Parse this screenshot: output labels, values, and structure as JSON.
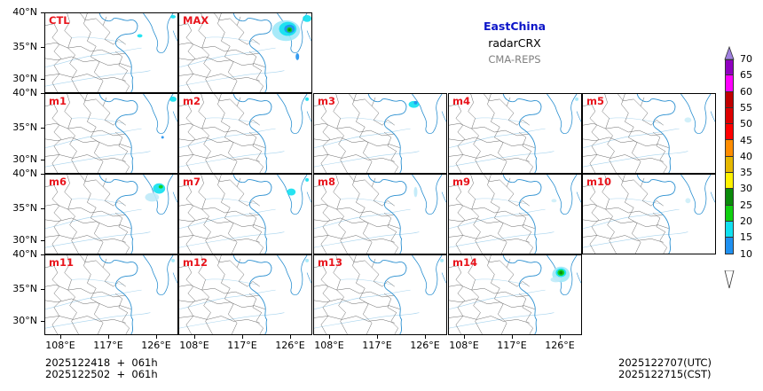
{
  "chart_data": {
    "type": "heatmap",
    "title": "EastChina",
    "subtitle": "radarCRX",
    "source": "CMA-REPS",
    "xlabel": "",
    "ylabel": "",
    "x_ticks": [
      "108°E",
      "117°E",
      "126°E"
    ],
    "y_ticks": [
      "40°N",
      "35°N",
      "30°N"
    ],
    "xlim_deg_E": [
      105,
      132
    ],
    "ylim_deg_N": [
      28,
      40
    ],
    "panels": [
      {
        "label": "CTL",
        "row": 0,
        "col": 0,
        "max_dbz_region": "light scattered echoes near Korea coast (~15 dBZ)"
      },
      {
        "label": "MAX",
        "row": 0,
        "col": 1,
        "max_dbz_region": "Yellow Sea/Korea cluster up to ~30 dBZ near 37.5°N,125°E"
      },
      {
        "label": "m1",
        "row": 1,
        "col": 0,
        "max_dbz_region": "weak echoes NE corner (~15-20 dBZ)"
      },
      {
        "label": "m2",
        "row": 1,
        "col": 1,
        "max_dbz_region": "very weak"
      },
      {
        "label": "m3",
        "row": 1,
        "col": 2,
        "max_dbz_region": "weak echoes near Korea (~15-20 dBZ)"
      },
      {
        "label": "m4",
        "row": 1,
        "col": 3,
        "max_dbz_region": "very weak"
      },
      {
        "label": "m5",
        "row": 1,
        "col": 4,
        "max_dbz_region": "very weak"
      },
      {
        "label": "m6",
        "row": 2,
        "col": 0,
        "max_dbz_region": "cluster ~15-20 dBZ near 37.5°N,123°E"
      },
      {
        "label": "m7",
        "row": 2,
        "col": 1,
        "max_dbz_region": "weak echoes near Korea (~15 dBZ)"
      },
      {
        "label": "m8",
        "row": 2,
        "col": 2,
        "max_dbz_region": "very weak"
      },
      {
        "label": "m9",
        "row": 2,
        "col": 3,
        "max_dbz_region": "very weak"
      },
      {
        "label": "m10",
        "row": 2,
        "col": 4,
        "max_dbz_region": "very weak"
      },
      {
        "label": "m11",
        "row": 3,
        "col": 0,
        "max_dbz_region": "very weak"
      },
      {
        "label": "m12",
        "row": 3,
        "col": 1,
        "max_dbz_region": "very weak"
      },
      {
        "label": "m13",
        "row": 3,
        "col": 2,
        "max_dbz_region": "very weak"
      },
      {
        "label": "m14",
        "row": 3,
        "col": 3,
        "max_dbz_region": "cluster up to ~25-30 dBZ near 37.5°N,125°E"
      }
    ],
    "colorbar": {
      "levels": [
        10,
        15,
        20,
        25,
        30,
        35,
        40,
        45,
        50,
        55,
        60,
        65,
        70
      ],
      "colors": [
        "#1e90f0",
        "#10e0f0",
        "#10d010",
        "#0a8a0a",
        "#fff200",
        "#e6b800",
        "#ff8c00",
        "#ff0000",
        "#dd0000",
        "#c00000",
        "#ff00ff",
        "#9000c0"
      ],
      "over_color": "#a080e0",
      "under_color": "#ffffff",
      "extend": "both"
    }
  },
  "header": {
    "region": "EastChina",
    "variable": "radarCRX",
    "model": "CMA-REPS"
  },
  "panels": [
    "CTL",
    "MAX",
    "m1",
    "m2",
    "m3",
    "m4",
    "m5",
    "m6",
    "m7",
    "m8",
    "m9",
    "m10",
    "m11",
    "m12",
    "m13",
    "m14"
  ],
  "axes": {
    "y": [
      "40°N",
      "35°N",
      "30°N"
    ],
    "x": [
      "108°E",
      "117°E",
      "126°E"
    ]
  },
  "footer": {
    "init_utc": "2025122418  +  061h",
    "init_cst": "2025122502  +  061h",
    "valid_utc": "2025122707(UTC)",
    "valid_cst": "2025122715(CST)"
  },
  "colorbar_labels": [
    "70",
    "65",
    "60",
    "55",
    "50",
    "45",
    "40",
    "35",
    "30",
    "25",
    "20",
    "15",
    "10"
  ]
}
